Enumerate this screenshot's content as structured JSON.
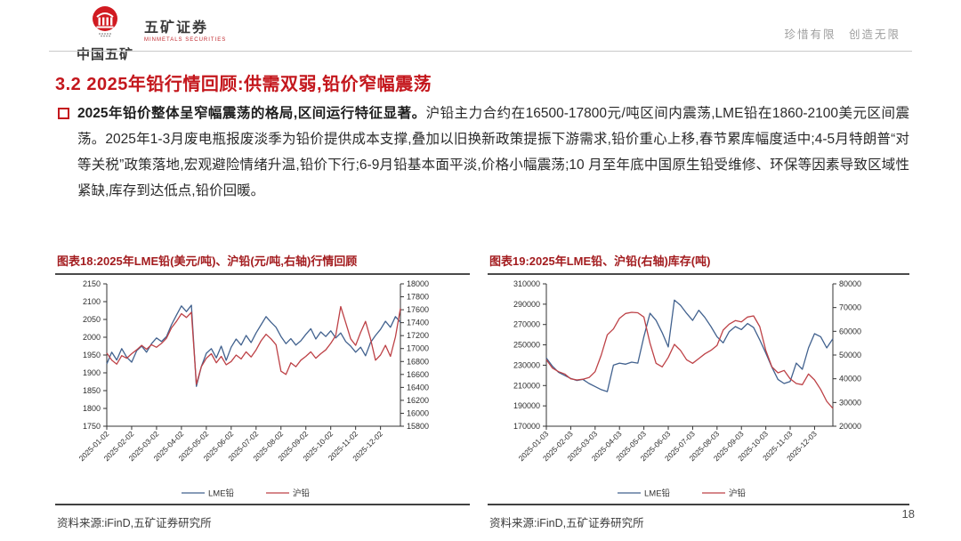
{
  "header": {
    "logo_cn": "中国五矿",
    "brand": "五矿证券",
    "brand_en": "MINMETALS SECURITIES",
    "slogan": "珍惜有限　创造无限"
  },
  "title": "3.2 2025年铅行情回顾:供需双弱,铅价窄幅震荡",
  "paragraph": {
    "lead": "2025年铅价整体呈窄幅震荡的格局,区间运行特征显著。",
    "body": "沪铅主力合约在16500-17800元/吨区间内震荡,LME铅在1860-2100美元区间震荡。2025年1-3月废电瓶报废淡季为铅价提供成本支撑,叠加以旧换新政策提振下游需求,铅价重心上移,春节累库幅度适中;4-5月特朗普“对等关税”政策落地,宏观避险情绪升温,铅价下行;6-9月铅基本面平淡,价格小幅震荡;10 月至年底中国原生铅受维修、环保等因素导致区域性紧缺,库存到达低点,铅价回暖。"
  },
  "figures": [
    {
      "title": "图表18:2025年LME铅(美元/吨)、沪铅(元/吨,右轴)行情回顾",
      "source": "资料来源:iFinD,五矿证券研究所"
    },
    {
      "title": "图表19:2025年LME铅、沪铅(右轴)库存(吨)",
      "source": "资料来源:iFinD,五矿证券研究所"
    }
  ],
  "page_number": "18",
  "colors": {
    "accent_red": "#c4171d",
    "figure_title_red": "#a31c1f",
    "lme_line_blue": "#41618e",
    "shfe_line_red": "#bd4146"
  },
  "chart_data": [
    {
      "type": "line",
      "title": "2025年LME铅(美元/吨)、沪铅(元/吨,右轴)行情回顾",
      "x_ticks": [
        "2025-01-02",
        "2025-02-02",
        "2025-03-02",
        "2025-04-02",
        "2025-05-02",
        "2025-06-02",
        "2025-07-02",
        "2025-08-02",
        "2025-09-02",
        "2025-10-02",
        "2025-11-02",
        "2025-12-02"
      ],
      "left_axis": {
        "min": 1750,
        "max": 2150,
        "ticks": [
          2150,
          2100,
          2050,
          2000,
          1950,
          1900,
          1850,
          1800,
          1750
        ]
      },
      "right_axis": {
        "min": 15800,
        "max": 18000,
        "ticks": [
          18000,
          17800,
          17600,
          17400,
          17200,
          17000,
          16800,
          16600,
          16400,
          16200,
          16000,
          15800
        ]
      },
      "legend_position": "bottom",
      "series": [
        {
          "name": "LME铅",
          "axis": "left",
          "color": "#41618e",
          "values": [
            1925,
            1958,
            1936,
            1968,
            1944,
            1930,
            1962,
            1975,
            1958,
            1982,
            1998,
            1988,
            2002,
            2035,
            2062,
            2088,
            2072,
            2090,
            1862,
            1918,
            1955,
            1968,
            1942,
            1975,
            1935,
            1972,
            1995,
            1978,
            2005,
            1985,
            2012,
            2035,
            2058,
            2042,
            2028,
            2002,
            1982,
            1996,
            1978,
            1990,
            2008,
            2024,
            1995,
            2015,
            2002,
            2018,
            1998,
            2012,
            1988,
            1975,
            1958,
            1972,
            1948,
            1985,
            2005,
            2022,
            2045,
            2028,
            2058,
            2042
          ]
        },
        {
          "name": "沪铅",
          "axis": "right",
          "color": "#bd4146",
          "values": [
            16930,
            16820,
            16760,
            16890,
            16850,
            16920,
            16980,
            17050,
            16990,
            17060,
            17020,
            17080,
            17160,
            17320,
            17420,
            17540,
            17480,
            17560,
            16450,
            16720,
            16850,
            16920,
            16780,
            16880,
            16750,
            16800,
            16900,
            16840,
            16950,
            16870,
            16980,
            17120,
            17220,
            17150,
            17060,
            16650,
            16600,
            16780,
            16720,
            16820,
            16880,
            16950,
            16850,
            16920,
            16980,
            17080,
            17200,
            17650,
            17400,
            17150,
            17050,
            17250,
            17420,
            17150,
            16820,
            16900,
            17050,
            16880,
            17180,
            17620
          ]
        }
      ]
    },
    {
      "type": "line",
      "title": "2025年LME铅、沪铅(右轴)库存(吨)",
      "x_ticks": [
        "2025-01-03",
        "2025-02-03",
        "2025-03-03",
        "2025-04-03",
        "2025-05-03",
        "2025-06-03",
        "2025-07-03",
        "2025-08-03",
        "2025-09-03",
        "2025-10-03",
        "2025-11-03",
        "2025-12-03"
      ],
      "left_axis": {
        "min": 170000,
        "max": 310000,
        "ticks": [
          310000,
          290000,
          270000,
          250000,
          230000,
          210000,
          190000,
          170000
        ]
      },
      "right_axis": {
        "min": 20000,
        "max": 80000,
        "ticks": [
          80000,
          70000,
          60000,
          50000,
          40000,
          30000,
          20000
        ]
      },
      "legend_position": "bottom",
      "series": [
        {
          "name": "LME铅",
          "axis": "left",
          "color": "#41618e",
          "values": [
            237000,
            229000,
            223000,
            220000,
            217000,
            215000,
            216000,
            212000,
            209000,
            206000,
            204000,
            230000,
            232000,
            231000,
            233000,
            232000,
            258000,
            281000,
            274000,
            262000,
            248000,
            294000,
            289000,
            281000,
            274000,
            284000,
            277000,
            268000,
            258000,
            252000,
            263000,
            268000,
            265000,
            271000,
            267000,
            255000,
            242000,
            228000,
            216000,
            212000,
            214000,
            232000,
            226000,
            247000,
            261000,
            258000,
            247000,
            256000
          ]
        },
        {
          "name": "沪铅",
          "axis": "right",
          "color": "#bd4146",
          "values": [
            48000,
            44500,
            43000,
            42000,
            40000,
            39500,
            39800,
            40500,
            43000,
            50000,
            58500,
            61000,
            65500,
            67500,
            68000,
            67800,
            66000,
            55000,
            46500,
            45000,
            49000,
            54500,
            52000,
            48000,
            46500,
            48500,
            50500,
            52000,
            54000,
            60500,
            63000,
            64500,
            64000,
            66000,
            66500,
            62000,
            52000,
            45000,
            42500,
            43500,
            40000,
            38000,
            37500,
            42000,
            39500,
            35500,
            30500,
            27500
          ]
        }
      ]
    }
  ]
}
